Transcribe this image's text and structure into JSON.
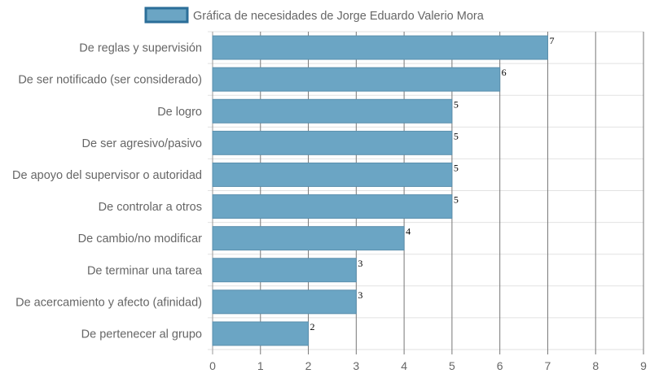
{
  "chart_data": {
    "type": "bar",
    "orientation": "horizontal",
    "categories": [
      "De reglas y supervisión",
      "De ser notificado (ser considerado)",
      "De logro",
      "De ser agresivo/pasivo",
      "De apoyo del supervisor o autoridad",
      "De controlar a otros",
      "De cambio/no modificar",
      "De terminar una tarea",
      "De acercamiento y afecto (afinidad)",
      "De pertenecer al grupo"
    ],
    "series": [
      {
        "name": "Gráfica de necesidades de Jorge Eduardo Valerio Mora",
        "values": [
          7,
          6,
          5,
          5,
          5,
          5,
          4,
          3,
          3,
          2
        ]
      }
    ],
    "xlim": [
      0,
      9
    ],
    "xticks": [
      "0",
      "1",
      "2",
      "3",
      "4",
      "5",
      "6",
      "7",
      "8",
      "9"
    ],
    "grid": true,
    "legend_position": "top",
    "colors": {
      "bar_fill": "#6ba5c4",
      "bar_stroke": "#5a8fad",
      "legend_stroke": "#2b6e99",
      "grid": "#e2e2e2",
      "grid_major": "#777777"
    }
  }
}
